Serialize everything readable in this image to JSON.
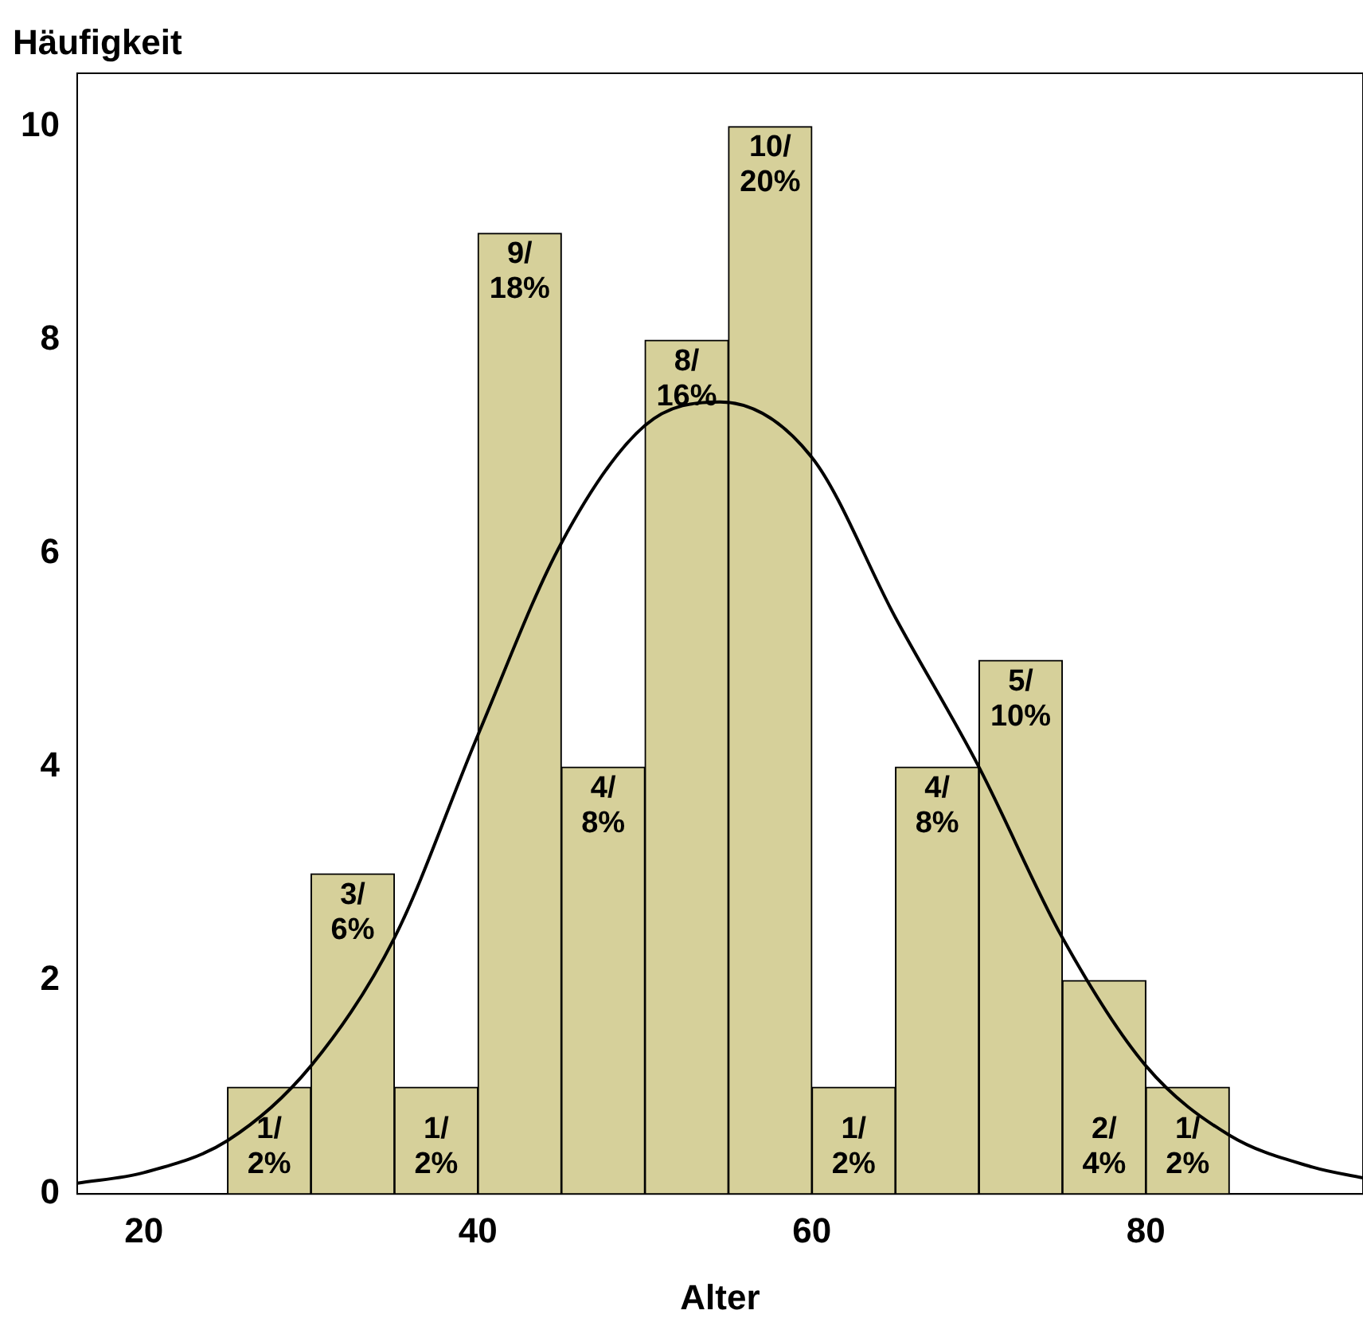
{
  "chart_data": {
    "type": "histogram",
    "ylabel": "Häufigkeit",
    "xlabel": "Alter",
    "bins": [
      25,
      30,
      35,
      40,
      45,
      50,
      55,
      60,
      65,
      70,
      75,
      80,
      85
    ],
    "values": [
      1,
      3,
      1,
      9,
      4,
      8,
      10,
      1,
      4,
      5,
      2,
      1
    ],
    "value_labels": [
      "1/\n2%",
      "3/\n6%",
      "1/\n2%",
      "9/\n18%",
      "4/\n8%",
      "8/\n16%",
      "10/\n20%",
      "1/\n2%",
      "4/\n8%",
      "5/\n10%",
      "2/\n4%",
      "1/\n2%"
    ],
    "color": "#d6d09a",
    "series": [
      {
        "type": "line",
        "color": "#000000",
        "x": [
          16,
          20,
          25,
          30,
          35,
          40,
          45,
          50,
          54.5,
          60,
          65,
          70,
          75,
          80,
          85,
          90,
          93
        ],
        "values": [
          0.1,
          0.2,
          0.5,
          1.2,
          2.4,
          4.3,
          6.1,
          7.2,
          7.42,
          6.9,
          5.4,
          4.0,
          2.4,
          1.2,
          0.55,
          0.25,
          0.15
        ]
      }
    ],
    "xlim": [
      16,
      93
    ],
    "xticks": [
      20,
      40,
      60,
      80
    ],
    "ylim": [
      0,
      10.5
    ],
    "yticks": [
      0,
      2,
      4,
      6,
      8,
      10
    ],
    "grid": false
  }
}
